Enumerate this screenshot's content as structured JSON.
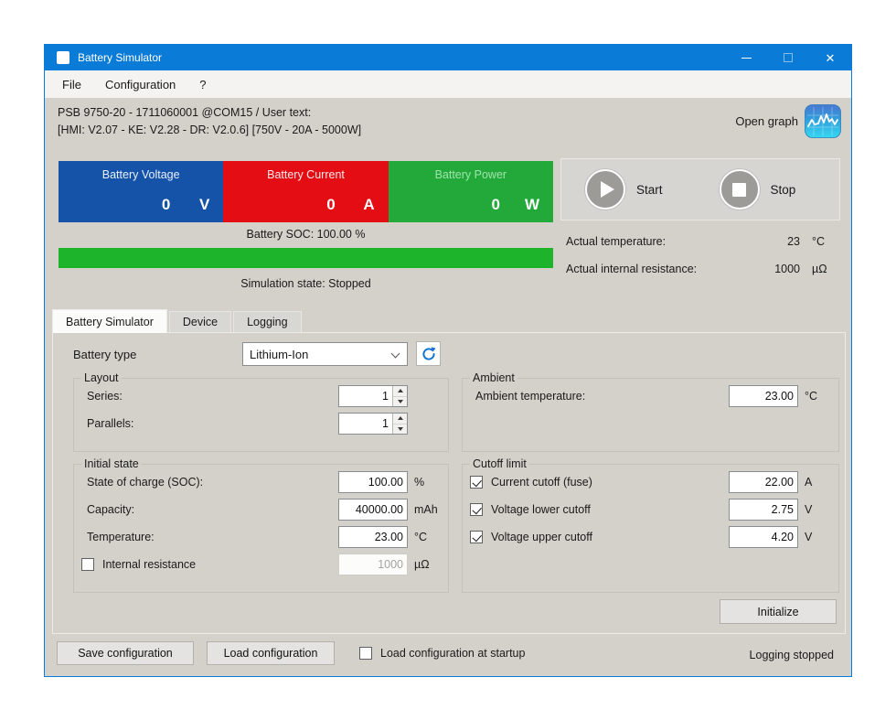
{
  "window": {
    "title": "Battery Simulator"
  },
  "menu": {
    "items": [
      {
        "label": "File"
      },
      {
        "label": "Configuration"
      },
      {
        "label": "?"
      }
    ]
  },
  "info_bar": {
    "line1": "PSB 9750-20 - 1711060001 @COM15 / User text:",
    "line2": "[HMI: V2.07 - KE: V2.28 - DR: V2.0.6] [750V - 20A - 5000W]",
    "open_graph": "Open graph"
  },
  "status": {
    "meters": [
      {
        "label": "Battery Voltage",
        "value": "0",
        "unit": "V",
        "color": "#1553a8",
        "label_color": "#e9f0fb"
      },
      {
        "label": "Battery Current",
        "value": "0",
        "unit": "A",
        "color": "#e30d13",
        "label_color": "#fbe9e9"
      },
      {
        "label": "Battery Power",
        "value": "0",
        "unit": "W",
        "color": "#22a93a",
        "label_color": "#9fe4ac"
      }
    ],
    "start_label": "Start",
    "stop_label": "Stop",
    "soc_text": "Battery SOC: 100.00 %",
    "soc_percent": 100,
    "soc_color": "#1db32a",
    "state_text": "Simulation state: Stopped",
    "readouts": [
      {
        "label": "Actual temperature:",
        "value": "23",
        "unit": "°C"
      },
      {
        "label": "Actual internal resistance:",
        "value": "1000",
        "unit": "µΩ"
      }
    ]
  },
  "tabs": [
    {
      "label": "Battery Simulator",
      "active": true
    },
    {
      "label": "Device",
      "active": false
    },
    {
      "label": "Logging",
      "active": false
    }
  ],
  "simulator_tab": {
    "battery_type": {
      "label": "Battery type",
      "value": "Lithium-Ion"
    },
    "layout_group": {
      "title": "Layout",
      "rows": [
        {
          "label": "Series:",
          "value": "1"
        },
        {
          "label": "Parallels:",
          "value": "1"
        }
      ]
    },
    "ambient_group": {
      "title": "Ambient",
      "row": {
        "label": "Ambient temperature:",
        "value": "23.00",
        "unit": "°C"
      }
    },
    "initial_group": {
      "title": "Initial state",
      "rows": [
        {
          "label": "State of charge (SOC):",
          "value": "100.00",
          "unit": "%"
        },
        {
          "label": "Capacity:",
          "value": "40000.00",
          "unit": "mAh"
        },
        {
          "label": "Temperature:",
          "value": "23.00",
          "unit": "°C"
        }
      ],
      "resistance_row": {
        "label": "Internal resistance",
        "checked": false,
        "value": "1000",
        "unit": "µΩ"
      }
    },
    "cutoff_group": {
      "title": "Cutoff limit",
      "rows": [
        {
          "label": "Current cutoff (fuse)",
          "checked": true,
          "value": "22.00",
          "unit": "A"
        },
        {
          "label": "Voltage lower cutoff",
          "checked": true,
          "value": "2.75",
          "unit": "V"
        },
        {
          "label": "Voltage upper cutoff",
          "checked": true,
          "value": "4.20",
          "unit": "V"
        }
      ]
    },
    "initialize_label": "Initialize"
  },
  "footer": {
    "save_label": "Save configuration",
    "load_label": "Load configuration",
    "startup_checkbox": {
      "label": "Load configuration at startup",
      "checked": false
    },
    "logging_status": "Logging stopped"
  }
}
